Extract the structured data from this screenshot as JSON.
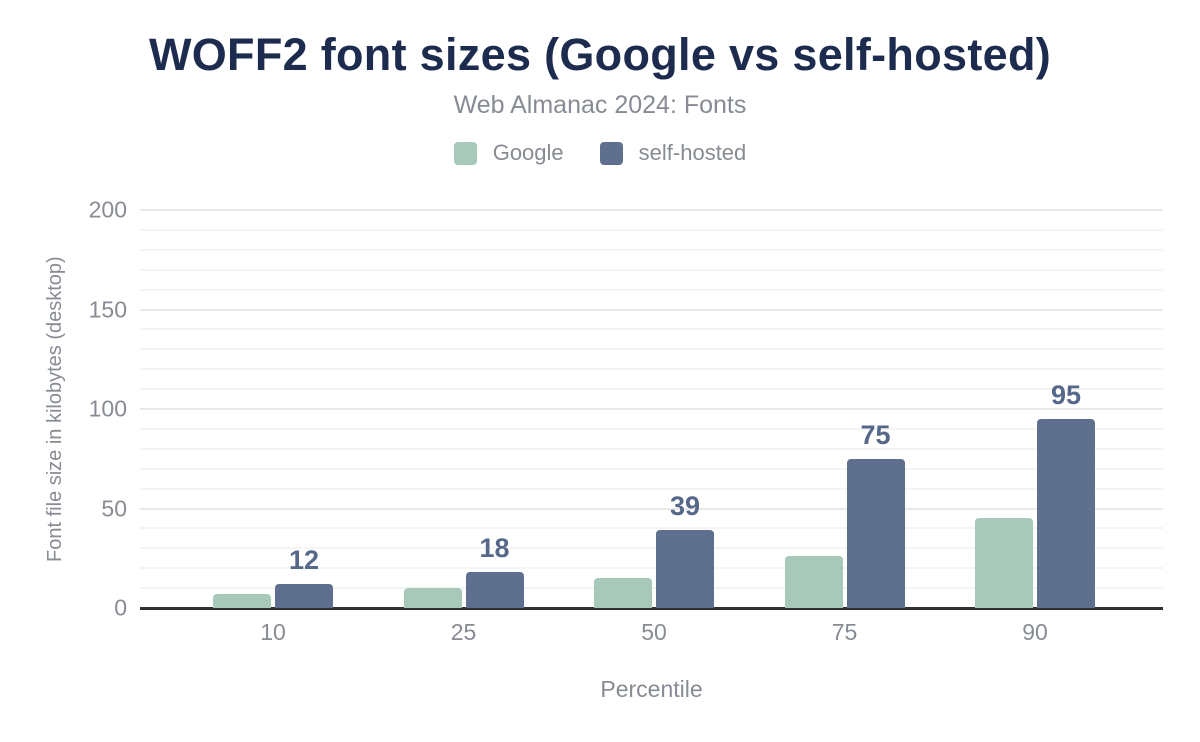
{
  "header": {
    "title": "WOFF2 font sizes (Google vs self-hosted)",
    "subtitle": "Web Almanac 2024: Fonts"
  },
  "legend": {
    "items": [
      {
        "label": "Google",
        "color": "#a7c9ba"
      },
      {
        "label": "self-hosted",
        "color": "#5e708e"
      }
    ]
  },
  "chart_data": {
    "type": "bar",
    "title": "WOFF2 font sizes (Google vs self-hosted)",
    "subtitle": "Web Almanac 2024: Fonts",
    "categories": [
      "10",
      "25",
      "50",
      "75",
      "90"
    ],
    "series": [
      {
        "name": "Google",
        "color": "#a7c9ba",
        "values": [
          7,
          10,
          15,
          26,
          45
        ],
        "data_labels": false
      },
      {
        "name": "self-hosted",
        "color": "#5e708e",
        "values": [
          12,
          18,
          39,
          75,
          95
        ],
        "data_labels": true
      }
    ],
    "xlabel": "Percentile",
    "ylabel": "Font file size in kilobytes (desktop)",
    "ylim": [
      0,
      200
    ],
    "yticks": [
      0,
      50,
      100,
      150,
      200
    ],
    "grid": {
      "horizontal": true,
      "minor_step": 10,
      "major_step": 50,
      "vertical": false
    },
    "legend_position": "top"
  },
  "colors": {
    "title_text": "#1c2b4e",
    "muted_text": "#878b93",
    "axis_line": "#2f2f2f",
    "gridline_minor": "#f4f4f4",
    "gridline_major": "#e9e9e9",
    "data_label": "#56688a",
    "background": "#ffffff"
  }
}
